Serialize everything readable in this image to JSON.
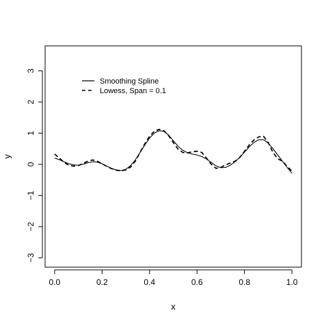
{
  "chart_data": {
    "type": "line",
    "title": "",
    "xlabel": "x",
    "ylabel": "y",
    "xlim": [
      -0.04,
      1.04
    ],
    "ylim": [
      -3.3,
      3.8
    ],
    "xticks": [
      0.0,
      0.2,
      0.4,
      0.6,
      0.8,
      1.0
    ],
    "xtick_labels": [
      "0.0",
      "0.2",
      "0.4",
      "0.6",
      "0.8",
      "1.0"
    ],
    "yticks": [
      -3,
      -2,
      -1,
      0,
      1,
      2,
      3
    ],
    "ytick_labels": [
      "−3",
      "−2",
      "−1",
      "0",
      "1",
      "2",
      "3"
    ],
    "grid": false,
    "legend_position": "top-left",
    "series": [
      {
        "name": "Smoothing Spline",
        "style": "solid",
        "color": "#000000",
        "x": [
          0.0,
          0.02,
          0.04,
          0.06,
          0.08,
          0.1,
          0.12,
          0.14,
          0.16,
          0.18,
          0.2,
          0.22,
          0.24,
          0.26,
          0.28,
          0.3,
          0.32,
          0.34,
          0.36,
          0.38,
          0.4,
          0.42,
          0.44,
          0.46,
          0.48,
          0.5,
          0.52,
          0.54,
          0.56,
          0.58,
          0.6,
          0.62,
          0.64,
          0.66,
          0.68,
          0.7,
          0.72,
          0.74,
          0.76,
          0.78,
          0.8,
          0.82,
          0.84,
          0.86,
          0.88,
          0.9,
          0.92,
          0.94,
          0.96,
          0.98,
          1.0
        ],
        "y": [
          0.2,
          0.15,
          0.08,
          0.02,
          -0.02,
          -0.03,
          0.0,
          0.05,
          0.08,
          0.07,
          0.02,
          -0.06,
          -0.13,
          -0.18,
          -0.2,
          -0.16,
          -0.04,
          0.14,
          0.38,
          0.62,
          0.84,
          1.0,
          1.08,
          1.06,
          0.94,
          0.76,
          0.58,
          0.45,
          0.37,
          0.33,
          0.3,
          0.25,
          0.17,
          0.06,
          -0.05,
          -0.11,
          -0.1,
          -0.03,
          0.08,
          0.22,
          0.39,
          0.56,
          0.7,
          0.79,
          0.79,
          0.68,
          0.5,
          0.3,
          0.1,
          -0.1,
          -0.29
        ]
      },
      {
        "name": "Lowess, Span = 0.1",
        "style": "dashed",
        "color": "#000000",
        "x": [
          0.0,
          0.02,
          0.04,
          0.06,
          0.08,
          0.1,
          0.12,
          0.14,
          0.16,
          0.18,
          0.2,
          0.22,
          0.24,
          0.26,
          0.28,
          0.3,
          0.32,
          0.34,
          0.36,
          0.38,
          0.4,
          0.42,
          0.44,
          0.46,
          0.48,
          0.5,
          0.52,
          0.54,
          0.56,
          0.58,
          0.6,
          0.62,
          0.64,
          0.66,
          0.68,
          0.7,
          0.72,
          0.74,
          0.76,
          0.78,
          0.8,
          0.82,
          0.84,
          0.86,
          0.88,
          0.9,
          0.92,
          0.94,
          0.96,
          0.98,
          1.0
        ],
        "y": [
          0.33,
          0.2,
          0.06,
          -0.03,
          -0.06,
          -0.04,
          0.03,
          0.1,
          0.14,
          0.1,
          0.02,
          -0.07,
          -0.14,
          -0.19,
          -0.21,
          -0.18,
          -0.09,
          0.1,
          0.38,
          0.66,
          0.9,
          1.06,
          1.12,
          1.08,
          0.92,
          0.7,
          0.49,
          0.38,
          0.37,
          0.4,
          0.42,
          0.38,
          0.2,
          0.0,
          -0.13,
          -0.1,
          -0.02,
          0.04,
          0.1,
          0.22,
          0.42,
          0.62,
          0.78,
          0.88,
          0.9,
          0.7,
          0.38,
          0.18,
          0.1,
          -0.07,
          -0.22
        ]
      }
    ]
  }
}
